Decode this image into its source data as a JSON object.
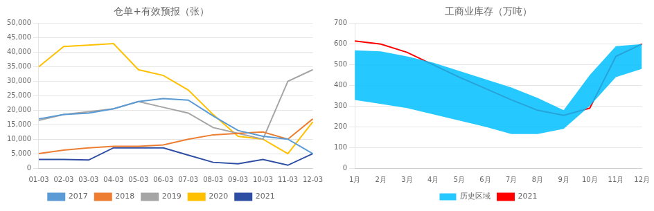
{
  "chart_data": [
    {
      "type": "line",
      "title": "仓单+有效预报（张）",
      "categories": [
        "01-03",
        "02-03",
        "03-03",
        "04-03",
        "05-03",
        "06-03",
        "07-03",
        "08-03",
        "09-03",
        "10-03",
        "11-03",
        "12-03"
      ],
      "series": [
        {
          "name": "2017",
          "color": "#5B9BD5",
          "values": [
            17000,
            18500,
            19000,
            20500,
            23000,
            24000,
            23500,
            18000,
            13000,
            11000,
            10000,
            5000
          ]
        },
        {
          "name": "2018",
          "color": "#ED7D31",
          "values": [
            5000,
            6200,
            7000,
            7500,
            7500,
            8000,
            10000,
            11500,
            12000,
            12500,
            10000,
            17000
          ]
        },
        {
          "name": "2019",
          "color": "#A5A5A5",
          "values": [
            16500,
            18500,
            19500,
            20500,
            23000,
            21000,
            19000,
            14000,
            12000,
            10000,
            30000,
            34000
          ]
        },
        {
          "name": "2020",
          "color": "#FFC000",
          "values": [
            35000,
            42000,
            42500,
            43000,
            34000,
            32000,
            27000,
            18500,
            11000,
            10000,
            5000,
            16000
          ]
        },
        {
          "name": "2021",
          "color": "#2E4EA4",
          "values": [
            3000,
            3000,
            2800,
            7000,
            7000,
            7000,
            4500,
            2000,
            1500,
            3000,
            1000,
            5000
          ]
        }
      ],
      "ylim": [
        0,
        50000
      ],
      "yticks": [
        0,
        {
          "value": 5000,
          "label": "5,000"
        },
        {
          "value": 10000,
          "label": "10,000"
        },
        {
          "value": 15000,
          "label": "15,000"
        },
        {
          "value": 20000,
          "label": "20,000"
        },
        {
          "value": 25000,
          "label": "25,000"
        },
        {
          "value": 30000,
          "label": "30,000"
        },
        {
          "value": 35000,
          "label": "35,000"
        },
        {
          "value": 40000,
          "label": "40,000"
        },
        {
          "value": 45000,
          "label": "45,000"
        },
        {
          "value": 50000,
          "label": "50,000"
        }
      ],
      "grid": true,
      "legend": "bottom"
    },
    {
      "type": "line",
      "title": "工商业库存（万吨）",
      "categories": [
        "1月",
        "2月",
        "3月",
        "4月",
        "5月",
        "6月",
        "7月",
        "8月",
        "9月",
        "10月",
        "11月",
        "12月"
      ],
      "series": [
        {
          "name": "历史区域",
          "type": "area_range",
          "color": "#00BFFF",
          "upper": [
            570,
            565,
            540,
            510,
            470,
            430,
            390,
            340,
            280,
            450,
            590,
            600
          ],
          "lower": [
            330,
            310,
            290,
            260,
            230,
            200,
            165,
            165,
            190,
            300,
            440,
            480
          ]
        },
        {
          "name": "2021",
          "type": "line",
          "color": "#FF0000",
          "values": [
            615,
            600,
            560,
            500,
            440,
            385,
            330,
            280,
            255,
            290,
            540,
            600
          ]
        }
      ],
      "ylim": [
        0,
        700
      ],
      "yticks": [
        0,
        100,
        200,
        300,
        400,
        500,
        600,
        700
      ],
      "grid": true,
      "legend": "bottom"
    }
  ]
}
